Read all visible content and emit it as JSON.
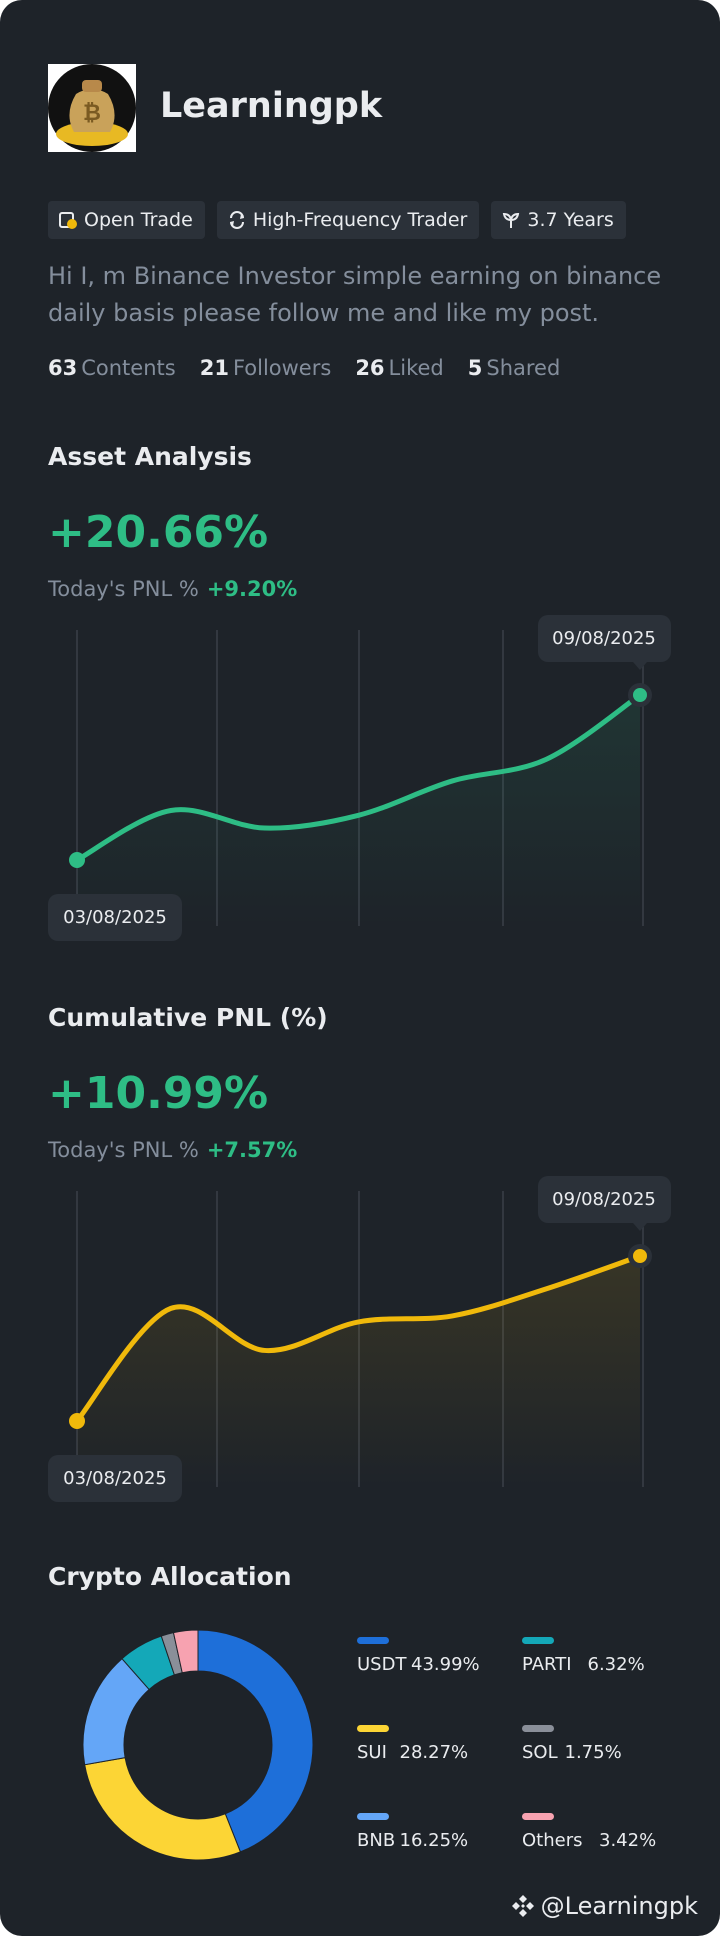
{
  "profile": {
    "name": "Learningpk",
    "tags": [
      "Open Trade",
      "High-Frequency Trader",
      "3.7 Years"
    ],
    "bio": "Hi I, m Binance Investor simple earning on binance daily basis please follow me and like my post.",
    "stats": [
      {
        "count": 63,
        "label": "Contents"
      },
      {
        "count": 21,
        "label": "Followers"
      },
      {
        "count": 26,
        "label": "Liked"
      },
      {
        "count": 5,
        "label": "Shared"
      }
    ]
  },
  "chart_data": [
    {
      "type": "line",
      "title": "Asset Analysis",
      "headline": "+20.66%",
      "today_label": "Today's PNL %",
      "today_value": "+9.20%",
      "categories": [
        "03/08/2025",
        null,
        null,
        null,
        null,
        null,
        "09/08/2025"
      ],
      "values": [
        0,
        6.2,
        4.0,
        5.6,
        9.9,
        12.6,
        20.66
      ],
      "color": "#2EBD85"
    },
    {
      "type": "line",
      "title": "Cumulative PNL (%)",
      "headline": "+10.99%",
      "today_label": "Today's PNL %",
      "today_value": "+7.57%",
      "categories": [
        "03/08/2025",
        null,
        null,
        null,
        null,
        null,
        "09/08/2025"
      ],
      "values": [
        0,
        7.5,
        4.7,
        6.6,
        7.0,
        8.8,
        10.99
      ],
      "color": "#F0B90B"
    },
    {
      "type": "pie",
      "title": "Crypto Allocation",
      "categories": [
        "USDT",
        "SUI",
        "BNB",
        "PARTI",
        "SOL",
        "Others"
      ],
      "values": [
        43.99,
        28.27,
        16.25,
        6.32,
        1.75,
        3.42
      ],
      "value_labels": [
        "43.99%",
        "28.27%",
        "16.25%",
        "6.32%",
        "1.75%",
        "3.42%"
      ],
      "colors": [
        "#1E6FD9",
        "#FCD535",
        "#64A6F7",
        "#14A8B8",
        "#8A8F99",
        "#F7A2B0"
      ]
    }
  ],
  "footer": {
    "handle": "@Learningpk"
  }
}
